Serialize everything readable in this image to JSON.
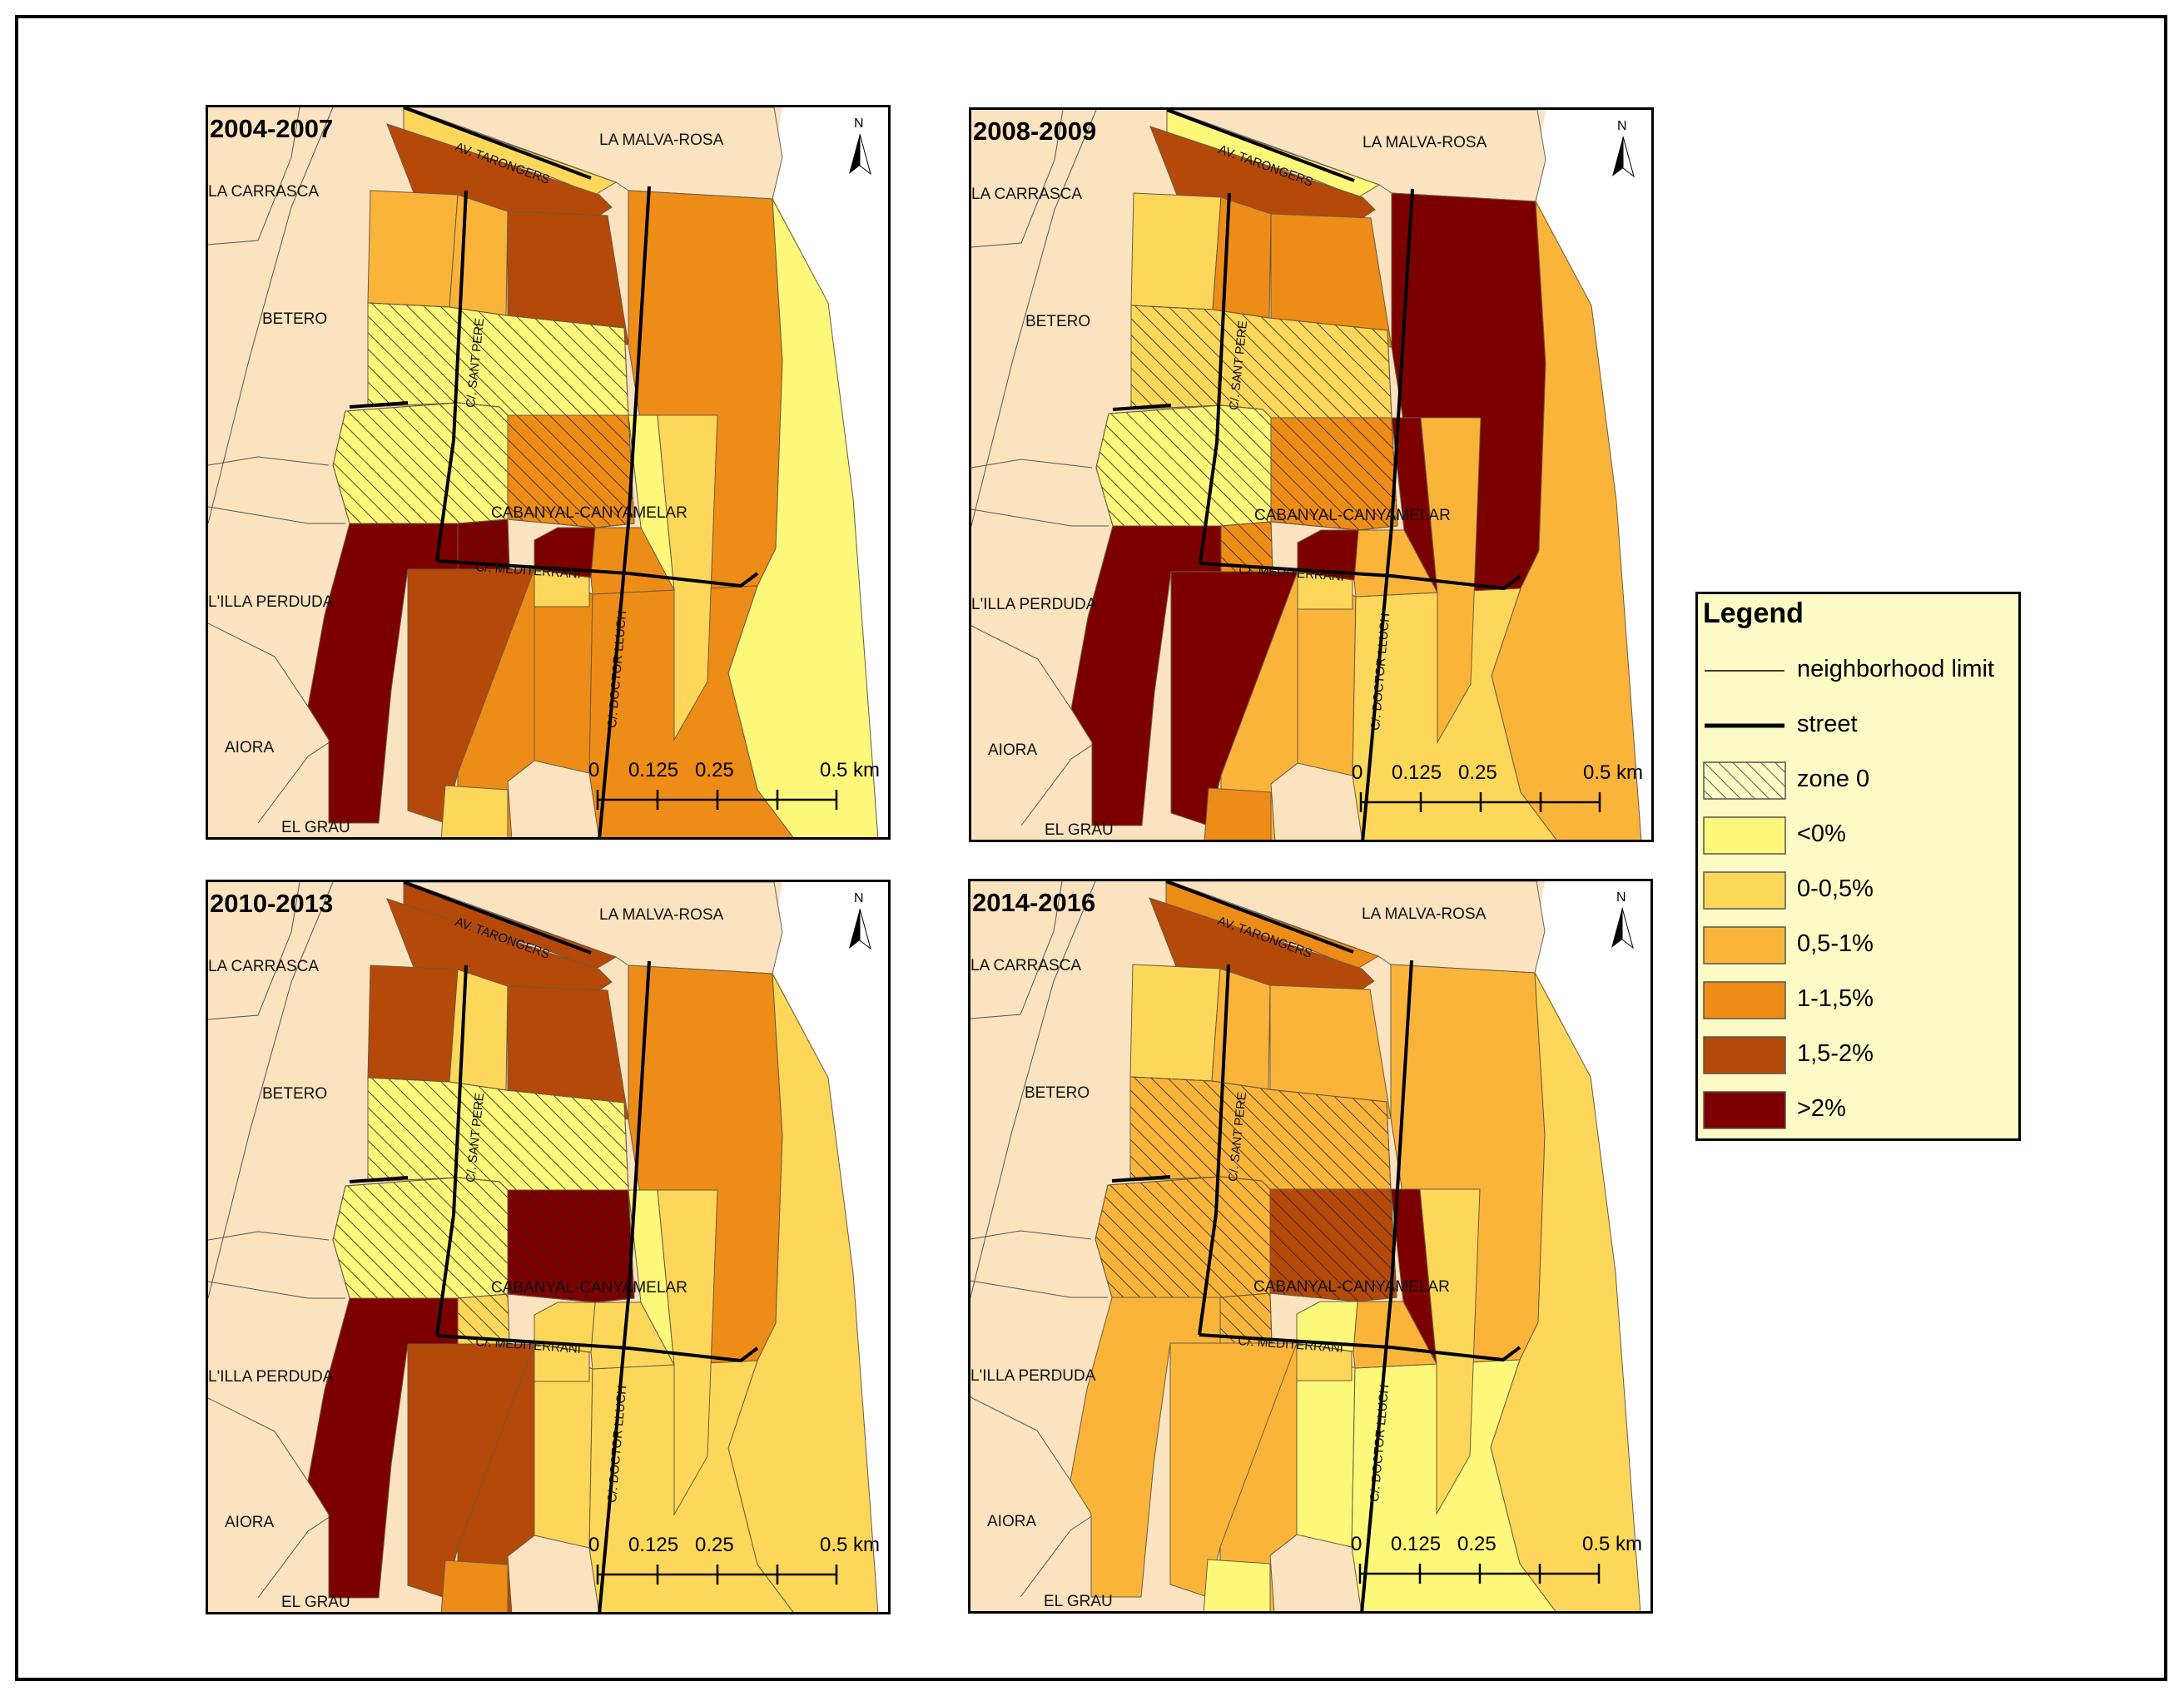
{
  "panels": [
    {
      "title": "2004-2007",
      "classes": {
        "A": "c1",
        "B": "c4",
        "C": "c2",
        "D": "c2",
        "E": "c4",
        "F": "c3",
        "G": "c0",
        "H": "c3",
        "I": "c3",
        "J": "c3",
        "K": "c1",
        "L": "c5",
        "M": "c0",
        "N": "c0",
        "O": "c3",
        "P": "c5",
        "Q": "c5",
        "R": "c5",
        "S": "c4",
        "T": "c3",
        "U": "c1",
        "V": "c0",
        "W": "c1"
      }
    },
    {
      "title": "2008-2009",
      "classes": {
        "A": "c0",
        "B": "c4",
        "C": "c1",
        "D": "c3",
        "E": "c3",
        "F": "c5",
        "G": "c2",
        "H": "c2",
        "I": "c1",
        "J": "c2",
        "K": "c1",
        "L": "c5",
        "M": "c1",
        "N": "c0",
        "O": "c3",
        "P": "c3",
        "Q": "c5",
        "R": "c5",
        "S": "c5",
        "T": "c2",
        "U": "c3",
        "V": "c5",
        "W": "c2"
      }
    },
    {
      "title": "2010-2013",
      "classes": {
        "A": "c4",
        "B": "c4",
        "C": "c4",
        "D": "c1",
        "E": "c4",
        "F": "c3",
        "G": "c1",
        "H": "c1",
        "I": "c1",
        "J": "c1",
        "K": "c1",
        "L": "c5",
        "M": "c0",
        "N": "c0",
        "O": "c5",
        "P": "c1",
        "Q": "c1",
        "R": "c5",
        "S": "c4",
        "T": "c4",
        "U": "c3",
        "V": "c0",
        "W": "c1"
      }
    },
    {
      "title": "2014-2016",
      "classes": {
        "A": "c3",
        "B": "c4",
        "C": "c1",
        "D": "c2",
        "E": "c2",
        "F": "c2",
        "G": "c1",
        "H": "c0",
        "I": "c0",
        "J": "c2",
        "K": "c1",
        "L": "c5",
        "M": "c2",
        "N": "c2",
        "O": "c4",
        "P": "c2",
        "Q": "c0",
        "R": "c2",
        "S": "c2",
        "T": "c2",
        "U": "c0",
        "V": "c5",
        "W": "c1"
      }
    }
  ],
  "neighborhoods": {
    "malva_rosa": "LA MALVA-ROSA",
    "carrasca": "LA CARRASCA",
    "betero": "BETERO",
    "illa_perduda": "L'ILLA PERDUDA",
    "aiora": "AIORA",
    "grau": "EL GRAU",
    "cabanyal": "CABANYAL-CANYAMELAR"
  },
  "streets": {
    "tarongers": "AV. TARONGERS",
    "sant_pere": "C/. SANT PERE",
    "mediterrani": "C/. MEDITERRANI",
    "doctor_lluch": "C/. DOCTOR LLUCH"
  },
  "north_label": "N",
  "scale": {
    "t0": "0",
    "t1": "0.125",
    "t2": "0.25",
    "t3": "0.5 km"
  },
  "legend": {
    "title": "Legend",
    "items": [
      {
        "label": "neighborhood limit",
        "kind": "thin-line"
      },
      {
        "label": "street",
        "kind": "thick-line"
      },
      {
        "label": "zone 0",
        "kind": "hatch"
      },
      {
        "label": "<0%",
        "kind": "fill",
        "color": "#fdf77a"
      },
      {
        "label": "0-0,5%",
        "kind": "fill",
        "color": "#fdd75a"
      },
      {
        "label": "0,5-1%",
        "kind": "fill",
        "color": "#fbb43a"
      },
      {
        "label": "1-1,5%",
        "kind": "fill",
        "color": "#ee8c18"
      },
      {
        "label": "1,5-2%",
        "kind": "fill",
        "color": "#b5490a"
      },
      {
        "label": ">2%",
        "kind": "fill",
        "color": "#7d0000"
      }
    ]
  },
  "colors": {
    "c0": "#fdf77a",
    "c1": "#fdd75a",
    "c2": "#fbb43a",
    "c3": "#ee8c18",
    "c4": "#b5490a",
    "c5": "#7d0000",
    "outside": "#fbe3c0"
  }
}
